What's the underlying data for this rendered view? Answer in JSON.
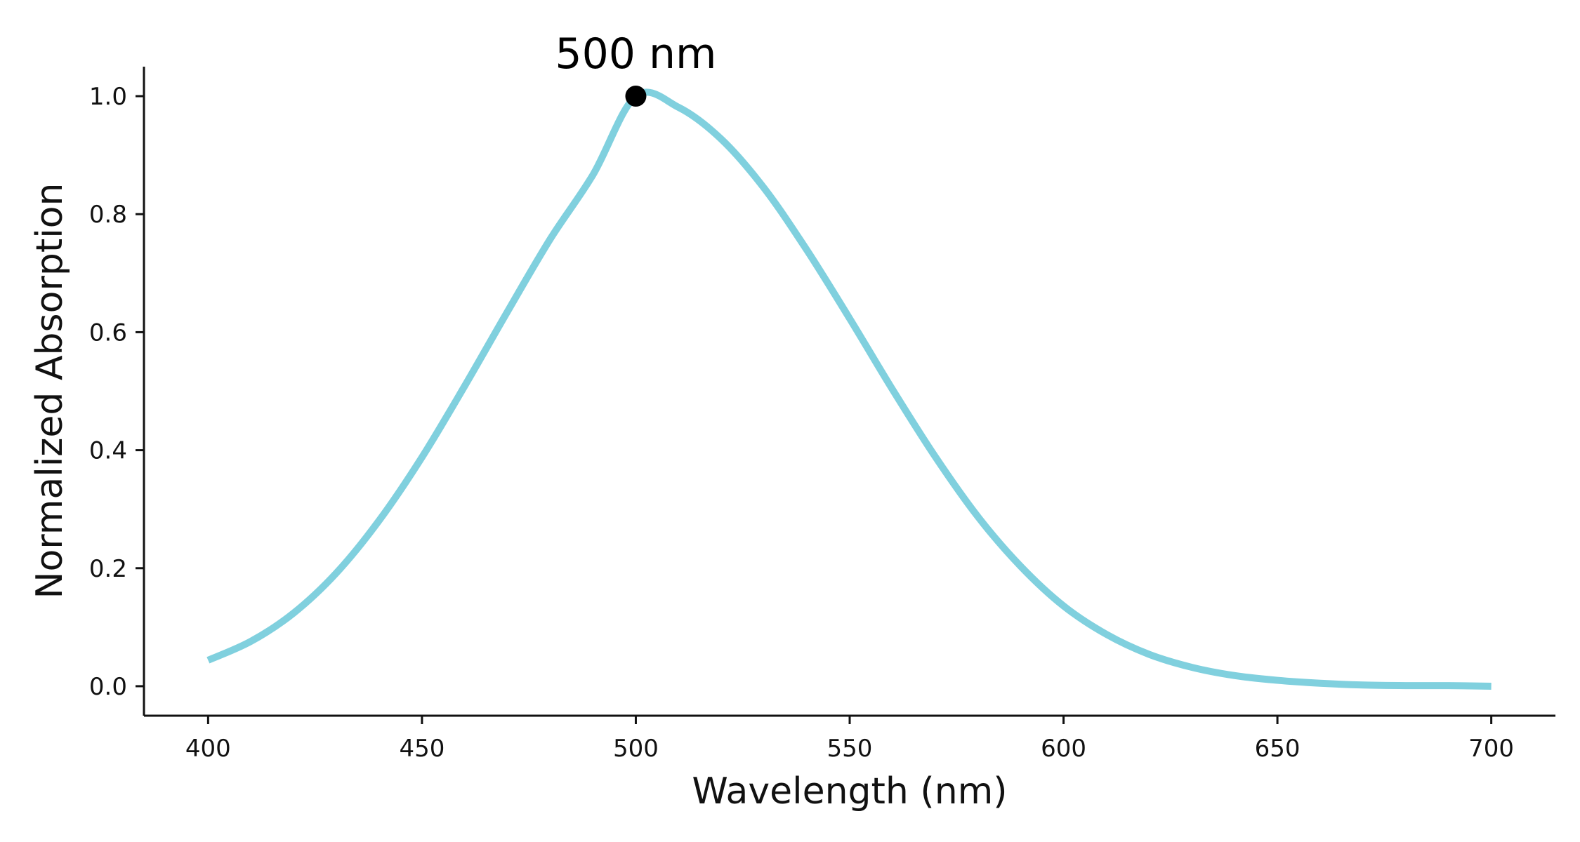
{
  "chart_data": {
    "type": "line",
    "xlabel": "Wavelength (nm)",
    "ylabel": "Normalized Absorption",
    "xlim": [
      385,
      715
    ],
    "ylim": [
      -0.05,
      1.05
    ],
    "xticks": [
      400,
      450,
      500,
      550,
      600,
      650,
      700
    ],
    "xtick_labels": [
      "400",
      "450",
      "500",
      "550",
      "600",
      "650",
      "700"
    ],
    "yticks": [
      0.0,
      0.2,
      0.4,
      0.6,
      0.8,
      1.0
    ],
    "ytick_labels": [
      "0.0",
      "0.2",
      "0.4",
      "0.6",
      "0.8",
      "1.0"
    ],
    "grid": false,
    "series": [
      {
        "color": "#80d0de",
        "x": [
          400,
          410,
          420,
          430,
          440,
          450,
          460,
          470,
          480,
          490,
          500,
          510,
          520,
          530,
          540,
          550,
          560,
          570,
          580,
          590,
          600,
          610,
          620,
          630,
          640,
          650,
          660,
          670,
          680,
          690,
          700
        ],
        "y": [
          0.044,
          0.076,
          0.124,
          0.192,
          0.281,
          0.388,
          0.509,
          0.635,
          0.758,
          0.867,
          1.0,
          0.981,
          0.927,
          0.844,
          0.739,
          0.623,
          0.503,
          0.389,
          0.287,
          0.203,
          0.136,
          0.088,
          0.054,
          0.032,
          0.018,
          0.01,
          0.005,
          0.002,
          0.001,
          0.001,
          0.0
        ]
      }
    ],
    "annotations": [
      {
        "text": "500 nm",
        "x": 500,
        "y": 1.0,
        "marker_color": "#000000"
      }
    ]
  }
}
